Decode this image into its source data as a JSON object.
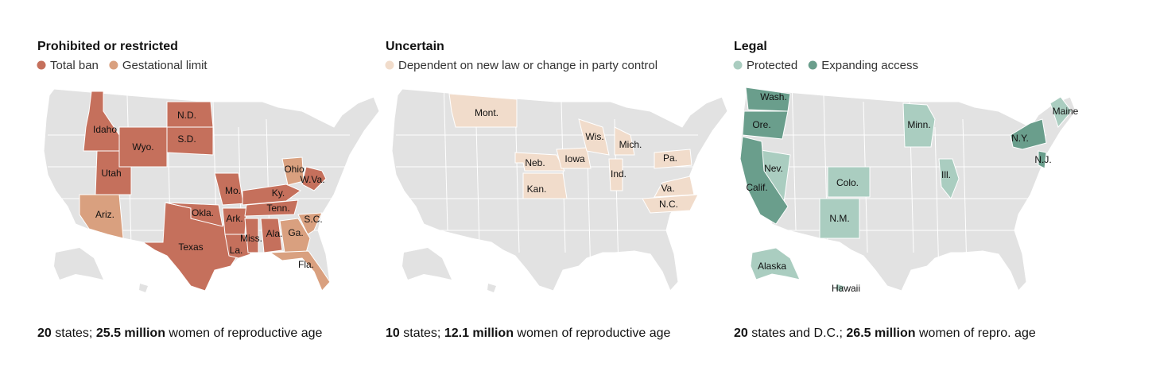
{
  "panels": [
    {
      "title": "Prohibited or restricted",
      "legend": [
        {
          "label": "Total ban",
          "color": "#c5705c",
          "states": [
            "Idaho",
            "Wyo.",
            "Utah",
            "N.D.",
            "S.D.",
            "Texas",
            "Okla.",
            "Mo.",
            "Ark.",
            "La.",
            "Miss.",
            "Ala.",
            "Tenn.",
            "Ky.",
            "W.Va."
          ]
        },
        {
          "label": "Gestational limit",
          "color": "#d9a07f",
          "states": [
            "Ariz.",
            "Ohio",
            "Ga.",
            "S.C.",
            "Fla."
          ]
        }
      ],
      "footer": [
        {
          "text": "20",
          "bold": true
        },
        {
          "text": " states; ",
          "bold": false
        },
        {
          "text": "25.5 million",
          "bold": true
        },
        {
          "text": " women of reproductive age",
          "bold": false
        }
      ]
    },
    {
      "title": "Uncertain",
      "legend": [
        {
          "label": "Dependent on new law or change in party control",
          "color": "#f1dccb",
          "states": [
            "Mont.",
            "Neb.",
            "Kan.",
            "Iowa",
            "Wis.",
            "Mich.",
            "Ind.",
            "Pa.",
            "Va.",
            "N.C."
          ]
        }
      ],
      "footer": [
        {
          "text": "10",
          "bold": true
        },
        {
          "text": " states; ",
          "bold": false
        },
        {
          "text": "12.1 million",
          "bold": true
        },
        {
          "text": " women of reproductive age",
          "bold": false
        }
      ]
    },
    {
      "title": "Legal",
      "legend": [
        {
          "label": "Protected",
          "color": "#aacdc0",
          "states": [
            "Minn.",
            "Nev.",
            "Colo.",
            "N.M.",
            "Ill.",
            "Maine",
            "Alaska",
            "Hawaii"
          ]
        },
        {
          "label": "Expanding access",
          "color": "#6a9e8c",
          "states": [
            "Wash.",
            "Ore.",
            "Calif.",
            "N.Y.",
            "N.J."
          ]
        }
      ],
      "footer": [
        {
          "text": "20",
          "bold": true
        },
        {
          "text": " states and D.C.; ",
          "bold": false
        },
        {
          "text": "26.5 million",
          "bold": true
        },
        {
          "text": " women of repro. age",
          "bold": false
        }
      ]
    }
  ]
}
